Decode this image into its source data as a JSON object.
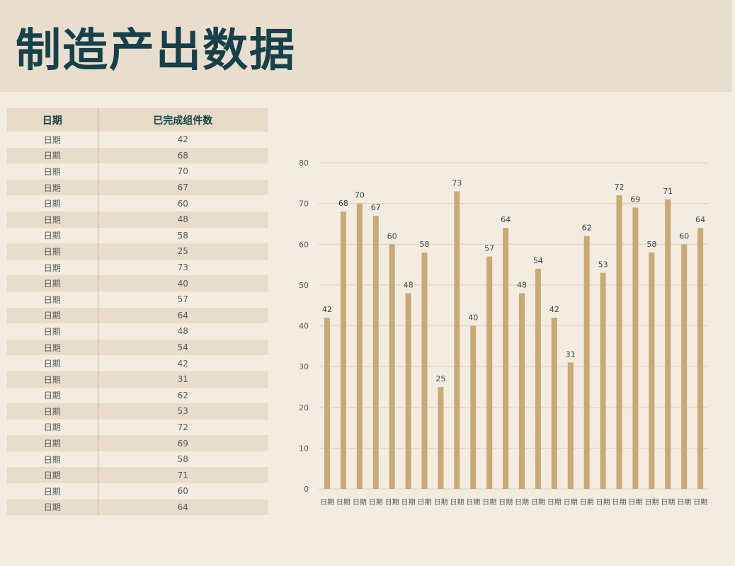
{
  "title": "制造产出数据",
  "table": {
    "headers": [
      "日期",
      "已完成组件数"
    ],
    "rows": [
      [
        "日期",
        "42"
      ],
      [
        "日期",
        "68"
      ],
      [
        "日期",
        "70"
      ],
      [
        "日期",
        "67"
      ],
      [
        "日期",
        "60"
      ],
      [
        "日期",
        "48"
      ],
      [
        "日期",
        "58"
      ],
      [
        "日期",
        "25"
      ],
      [
        "日期",
        "73"
      ],
      [
        "日期",
        "40"
      ],
      [
        "日期",
        "57"
      ],
      [
        "日期",
        "64"
      ],
      [
        "日期",
        "48"
      ],
      [
        "日期",
        "54"
      ],
      [
        "日期",
        "42"
      ],
      [
        "日期",
        "31"
      ],
      [
        "日期",
        "62"
      ],
      [
        "日期",
        "53"
      ],
      [
        "日期",
        "72"
      ],
      [
        "日期",
        "69"
      ],
      [
        "日期",
        "58"
      ],
      [
        "日期",
        "71"
      ],
      [
        "日期",
        "60"
      ],
      [
        "日期",
        "64"
      ]
    ]
  },
  "chart_data": {
    "type": "bar",
    "categories": [
      "日期",
      "日期",
      "日期",
      "日期",
      "日期",
      "日期",
      "日期",
      "日期",
      "日期",
      "日期",
      "日期",
      "日期",
      "日期",
      "日期",
      "日期",
      "日期",
      "日期",
      "日期",
      "日期",
      "日期",
      "日期",
      "日期",
      "日期",
      "日期"
    ],
    "values": [
      42,
      68,
      70,
      67,
      60,
      48,
      58,
      25,
      73,
      40,
      57,
      64,
      48,
      54,
      42,
      31,
      62,
      53,
      72,
      69,
      58,
      71,
      60,
      64
    ],
    "yticks": [
      0,
      10,
      20,
      30,
      40,
      50,
      60,
      70,
      80
    ],
    "ylim": [
      0,
      80
    ],
    "grid": true,
    "data_labels": true,
    "bar_color": "#c8aa74",
    "grid_color": "#ddd2bd"
  }
}
